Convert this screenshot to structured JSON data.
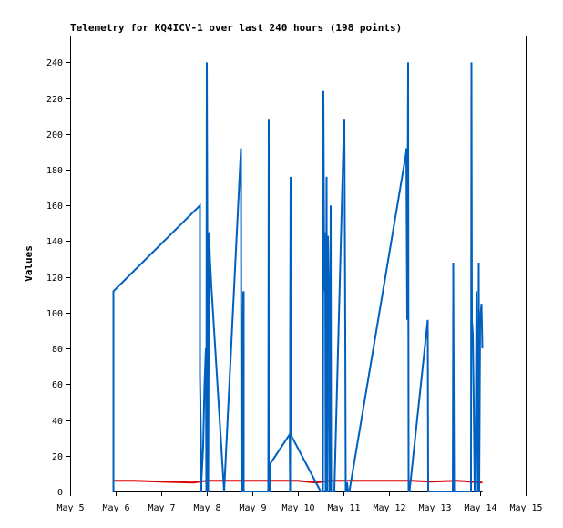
{
  "chart_data": {
    "type": "line",
    "title": "Telemetry for KQ4ICV-1 over last 240 hours (198 points)",
    "xlabel": "",
    "ylabel": "Values",
    "xlim": [
      5,
      15
    ],
    "ylim": [
      0,
      255
    ],
    "x_ticks": [
      5,
      6,
      7,
      8,
      9,
      10,
      11,
      12,
      13,
      14,
      15
    ],
    "x_tick_labels": [
      "May 5",
      "May 6",
      "May 7",
      "May 8",
      "May 9",
      "May 10",
      "May 11",
      "May 12",
      "May 13",
      "May 14",
      "May 15"
    ],
    "y_ticks": [
      0,
      20,
      40,
      60,
      80,
      100,
      120,
      140,
      160,
      180,
      200,
      220,
      240
    ],
    "grid": false,
    "legend": "none",
    "series": [
      {
        "color": "#000000",
        "x": [
          5.95,
          14.05
        ],
        "y": [
          0,
          0
        ]
      },
      {
        "color": "#e00000",
        "x": [
          5.95,
          6.4,
          7.0,
          7.7,
          8.0,
          8.5,
          9.0,
          9.5,
          10.0,
          10.4,
          10.7,
          11.0,
          11.5,
          12.0,
          12.5,
          12.9,
          13.5,
          14.05
        ],
        "y": [
          6,
          6,
          5.5,
          5,
          6,
          6,
          6,
          6,
          6,
          5,
          6,
          6,
          6,
          6,
          6,
          5.5,
          6,
          5
        ]
      },
      {
        "color": "#0060c0",
        "x": [
          5.95,
          5.95,
          7.85,
          7.85,
          7.87,
          7.88,
          7.88,
          7.92,
          7.95,
          7.98,
          7.99,
          8.0,
          8.03,
          8.05,
          8.07,
          8.1,
          8.38,
          8.38,
          8.75,
          8.76,
          8.76,
          8.8,
          8.8,
          8.81,
          8.81,
          9.35,
          9.36,
          9.36,
          9.38,
          9.38,
          9.82,
          9.83,
          9.83,
          9.84,
          9.84,
          10.5,
          10.55,
          10.56,
          10.58,
          10.6,
          10.61,
          10.63,
          10.64,
          10.66,
          10.68,
          10.69,
          10.7,
          10.72,
          10.73,
          10.75,
          10.77,
          10.78,
          10.8,
          11.0,
          11.02,
          11.04,
          11.05,
          11.07,
          11.08,
          11.1,
          11.11,
          11.13,
          12.38,
          12.38,
          12.4,
          12.42,
          12.43,
          12.44,
          12.45,
          12.85,
          12.86,
          12.86,
          13.4,
          13.41,
          13.41,
          13.43,
          13.43,
          13.8,
          13.81,
          13.82,
          13.84,
          13.86,
          13.88,
          13.9,
          13.92,
          13.95,
          13.97,
          13.98,
          14.0,
          14.03,
          14.05
        ],
        "y": [
          0,
          112,
          160,
          65,
          32,
          0,
          5,
          25,
          60,
          80,
          0,
          240,
          0,
          145,
          130,
          115,
          0,
          0,
          192,
          0,
          0,
          112,
          0,
          112,
          0,
          0,
          208,
          0,
          0,
          15,
          32,
          0,
          88,
          176,
          32,
          0,
          0,
          224,
          112,
          145,
          0,
          176,
          0,
          143,
          112,
          0,
          0,
          160,
          0,
          0,
          0,
          0,
          0,
          195,
          208,
          90,
          0,
          0,
          5,
          0,
          0,
          0,
          190,
          192,
          96,
          240,
          0,
          0,
          0,
          96,
          0,
          0,
          0,
          112,
          128,
          0,
          0,
          0,
          240,
          96,
          88,
          50,
          0,
          0,
          112,
          0,
          128,
          0,
          96,
          105,
          80
        ]
      }
    ]
  }
}
